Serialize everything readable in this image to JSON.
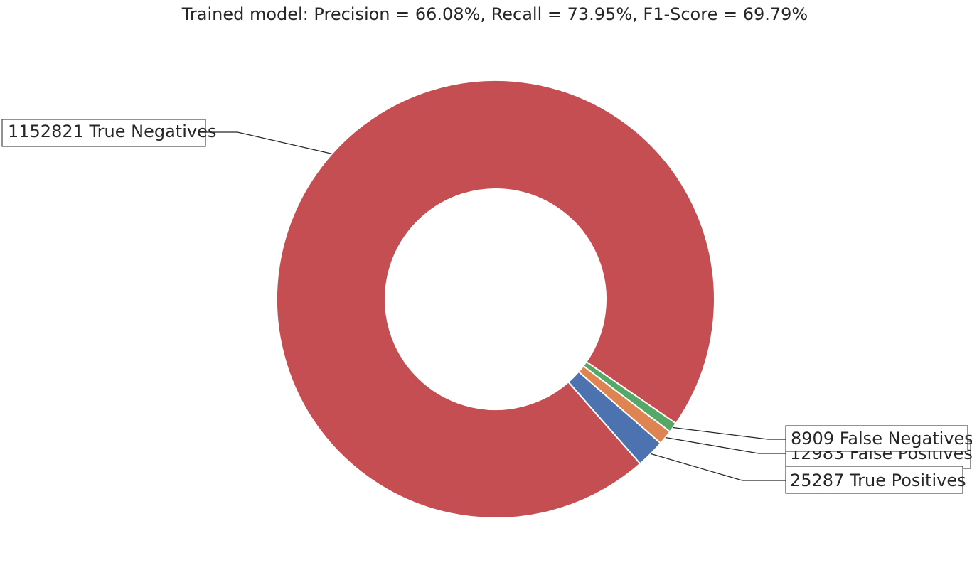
{
  "chart_data": {
    "type": "pie",
    "style": "donut",
    "title": "Trained model: Precision = 66.08%, Recall = 73.95%, F1-Score = 69.79%",
    "slices": [
      {
        "label": "25287 True Positives",
        "value": 25287,
        "color": "#4c72b0"
      },
      {
        "label": "12983 False Positives",
        "value": 12983,
        "color": "#dd8452"
      },
      {
        "label": "8909 False Negatives",
        "value": 8909,
        "color": "#55a868"
      },
      {
        "label": "1152821 True Negatives",
        "value": 1152821,
        "color": "#c44e52"
      }
    ],
    "legend": "none"
  }
}
